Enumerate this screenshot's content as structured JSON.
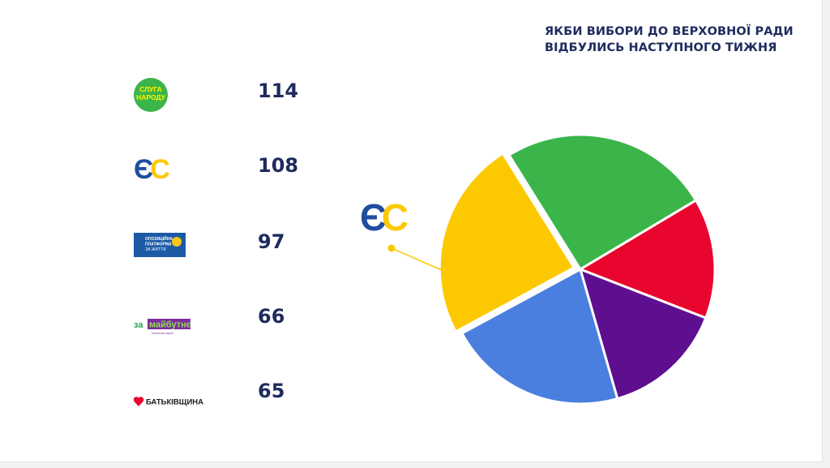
{
  "title": {
    "line1": "ЯКБИ ВИБОРИ ДО ВЕРХОВНОЇ РАДИ",
    "line2": "ВІДБУЛИСЬ НАСТУПНОГО ТИЖНЯ"
  },
  "parties": [
    {
      "logo_text": [
        "СЛУГА",
        "НАРОДУ"
      ],
      "seats": "114",
      "color": "#3bb54a"
    },
    {
      "logo_text": [
        "ЄС"
      ],
      "seats": "108",
      "color": "#fcc900"
    },
    {
      "logo_text": [
        "ОПОЗИЦІЙНА",
        "ПЛАТФОРМА",
        "ЗА ЖИТТЯ"
      ],
      "seats": "97",
      "color": "#4a7fdf"
    },
    {
      "logo_text": [
        "за",
        "майбутнє",
        "політична партія"
      ],
      "seats": "66",
      "color": "#5e0f90"
    },
    {
      "logo_text": [
        "БАТЬКІВЩИНА"
      ],
      "seats": "65",
      "color": "#e8062e"
    }
  ],
  "callout": {
    "logo_text": "ЄС"
  },
  "chart_data": {
    "type": "pie",
    "title": "ЯКБИ ВИБОРИ ДО ВЕРХОВНОЇ РАДИ ВІДБУЛИСЬ НАСТУПНОГО ТИЖНЯ",
    "categories": [
      "Слуга народу",
      "Європейська солідарність",
      "Опозиційна платформа — За життя",
      "За майбутнє",
      "Батьківщина"
    ],
    "values": [
      114,
      108,
      97,
      66,
      65
    ],
    "colors": [
      "#3bb54a",
      "#fcc900",
      "#4a7fdf",
      "#5e0f90",
      "#e8062e"
    ],
    "exploded": "Європейська солідарність"
  }
}
